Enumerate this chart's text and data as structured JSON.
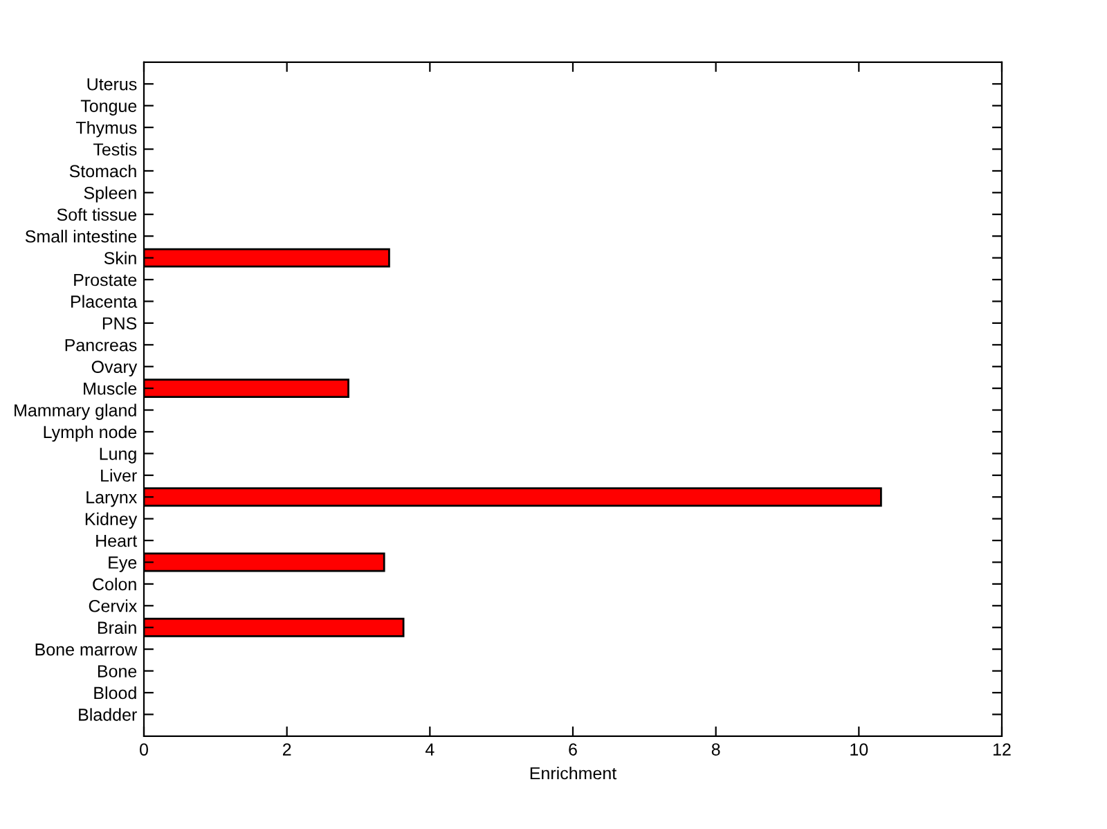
{
  "chart_data": {
    "type": "bar",
    "orientation": "horizontal",
    "xlabel": "Enrichment",
    "categories": [
      "Uterus",
      "Tongue",
      "Thymus",
      "Testis",
      "Stomach",
      "Spleen",
      "Soft tissue",
      "Small intestine",
      "Skin",
      "Prostate",
      "Placenta",
      "PNS",
      "Pancreas",
      "Ovary",
      "Muscle",
      "Mammary gland",
      "Lymph node",
      "Lung",
      "Liver",
      "Larynx",
      "Kidney",
      "Heart",
      "Eye",
      "Colon",
      "Cervix",
      "Brain",
      "Bone marrow",
      "Bone",
      "Blood",
      "Bladder"
    ],
    "values": [
      null,
      null,
      null,
      null,
      null,
      null,
      null,
      null,
      3.43,
      null,
      null,
      null,
      null,
      null,
      2.86,
      null,
      null,
      null,
      null,
      10.31,
      null,
      null,
      3.36,
      null,
      null,
      3.63,
      null,
      null,
      null,
      null
    ],
    "color": "#ff0000",
    "xlim": [
      0,
      12
    ],
    "xticks": [
      0,
      2,
      4,
      6,
      8,
      10,
      12
    ],
    "grid": false,
    "legend": false
  }
}
